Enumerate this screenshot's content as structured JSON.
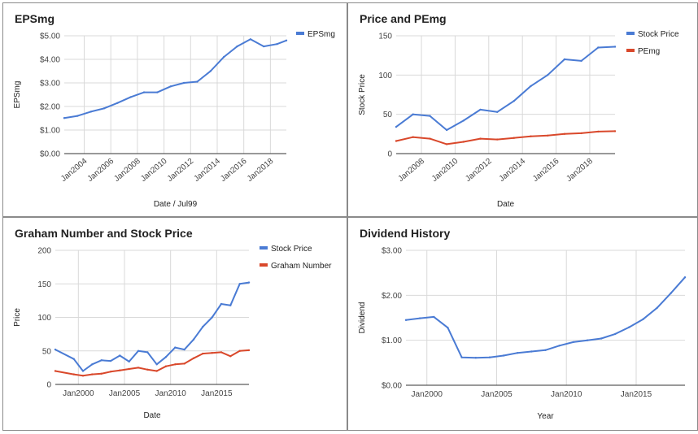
{
  "colors": {
    "blue": "#4a7bd4",
    "red": "#d9482b",
    "grid": "#d9d9d9",
    "baseline": "#333333"
  },
  "chart_data": [
    {
      "type": "line",
      "title": "EPSmg",
      "xlabel": "Date / Jul99",
      "ylabel": "EPSmg",
      "xlim": [
        2002.5,
        2019.2
      ],
      "ylim": [
        0,
        5
      ],
      "y_ticks": [
        "$0.00",
        "$1.00",
        "$2.00",
        "$3.00",
        "$4.00",
        "$5.00"
      ],
      "x_ticks": [
        {
          "label": "Jan2004",
          "x": 2004
        },
        {
          "label": "Jan2006",
          "x": 2006
        },
        {
          "label": "Jan2008",
          "x": 2008
        },
        {
          "label": "Jan2010",
          "x": 2010
        },
        {
          "label": "Jan2012",
          "x": 2012
        },
        {
          "label": "Jan2014",
          "x": 2014
        },
        {
          "label": "Jan2016",
          "x": 2016
        },
        {
          "label": "Jan2018",
          "x": 2018
        }
      ],
      "x_tick_rotate": true,
      "legend": "right",
      "series": [
        {
          "name": "EPSmg",
          "color": "#4a7bd4",
          "x": [
            2002.5,
            2003.5,
            2004.5,
            2005.5,
            2006.5,
            2007.5,
            2008.5,
            2009.5,
            2010.5,
            2011.5,
            2012.5,
            2013.5,
            2014.5,
            2015.5,
            2016.5,
            2017.5,
            2018.5,
            2019.2
          ],
          "y": [
            1.51,
            1.6,
            1.78,
            1.92,
            2.15,
            2.4,
            2.6,
            2.6,
            2.85,
            3.0,
            3.05,
            3.5,
            4.1,
            4.55,
            4.85,
            4.55,
            4.65,
            4.8
          ]
        }
      ]
    },
    {
      "type": "line",
      "title": "Price and PEmg",
      "xlabel": "Date",
      "ylabel": "Stock Price",
      "xlim": [
        2006.5,
        2019.5
      ],
      "ylim": [
        0,
        150
      ],
      "y_ticks": [
        "0",
        "50",
        "100",
        "150"
      ],
      "x_ticks": [
        {
          "label": "Jan2008",
          "x": 2008
        },
        {
          "label": "Jan2010",
          "x": 2010
        },
        {
          "label": "Jan2012",
          "x": 2012
        },
        {
          "label": "Jan2014",
          "x": 2014
        },
        {
          "label": "Jan2016",
          "x": 2016
        },
        {
          "label": "Jan2018",
          "x": 2018
        }
      ],
      "x_tick_rotate": true,
      "legend": "right",
      "series": [
        {
          "name": "Stock Price",
          "color": "#4a7bd4",
          "x": [
            2006.5,
            2007.5,
            2008.5,
            2009.5,
            2010.5,
            2011.5,
            2012.5,
            2013.5,
            2014.5,
            2015.5,
            2016.5,
            2017.5,
            2018.5,
            2019.5
          ],
          "y": [
            34,
            50,
            48,
            30,
            42,
            56,
            53,
            67,
            86,
            100,
            120,
            118,
            135,
            136
          ]
        },
        {
          "name": "PEmg",
          "color": "#d9482b",
          "x": [
            2006.5,
            2007.5,
            2008.5,
            2009.5,
            2010.5,
            2011.5,
            2012.5,
            2013.5,
            2014.5,
            2015.5,
            2016.5,
            2017.5,
            2018.5,
            2019.5
          ],
          "y": [
            16,
            21,
            19,
            12,
            15,
            19,
            18,
            20,
            22,
            23,
            25,
            26,
            28,
            28.5
          ]
        }
      ]
    },
    {
      "type": "line",
      "title": "Graham Number and Stock Price",
      "xlabel": "Date",
      "ylabel": "Price",
      "xlim": [
        1997.5,
        2018.5
      ],
      "ylim": [
        0,
        200
      ],
      "y_ticks": [
        "0",
        "50",
        "100",
        "150",
        "200"
      ],
      "x_ticks": [
        {
          "label": "Jan2000",
          "x": 2000
        },
        {
          "label": "Jan2005",
          "x": 2005
        },
        {
          "label": "Jan2010",
          "x": 2010
        },
        {
          "label": "Jan2015",
          "x": 2015
        }
      ],
      "x_tick_rotate": false,
      "legend": "right",
      "series": [
        {
          "name": "Stock Price",
          "color": "#4a7bd4",
          "x": [
            1997.5,
            1999.5,
            2000.5,
            2001.5,
            2002.5,
            2003.5,
            2004.5,
            2005.5,
            2006.5,
            2007.5,
            2008.5,
            2009.5,
            2010.5,
            2011.5,
            2012.5,
            2013.5,
            2014.5,
            2015.5,
            2016.5,
            2017.5,
            2018.5
          ],
          "y": [
            52,
            38,
            20,
            30,
            36,
            35,
            43,
            34,
            50,
            48,
            30,
            41,
            55,
            52,
            67,
            86,
            100,
            120,
            118,
            150,
            152
          ]
        },
        {
          "name": "Graham Number",
          "color": "#d9482b",
          "x": [
            1997.5,
            1999.5,
            2000.5,
            2001.5,
            2002.5,
            2003.5,
            2004.5,
            2005.5,
            2006.5,
            2007.5,
            2008.5,
            2009.5,
            2010.5,
            2011.5,
            2012.5,
            2013.5,
            2014.5,
            2015.5,
            2016.5,
            2017.5,
            2018.5
          ],
          "y": [
            20,
            15,
            13,
            15,
            16,
            19,
            21,
            23,
            25,
            22,
            20,
            27,
            30,
            31,
            39,
            46,
            47,
            48,
            42,
            50,
            51
          ]
        }
      ]
    },
    {
      "type": "line",
      "title": "Dividend History",
      "xlabel": "Year",
      "ylabel": "Dividend",
      "xlim": [
        1998.5,
        2018.5
      ],
      "ylim": [
        0,
        3
      ],
      "y_ticks": [
        "$0.00",
        "$1.00",
        "$2.00",
        "$3.00"
      ],
      "x_ticks": [
        {
          "label": "Jan2000",
          "x": 2000
        },
        {
          "label": "Jan2005",
          "x": 2005
        },
        {
          "label": "Jan2010",
          "x": 2010
        },
        {
          "label": "Jan2015",
          "x": 2015
        }
      ],
      "x_tick_rotate": false,
      "legend": "none",
      "series": [
        {
          "color": "#4a7bd4",
          "x": [
            1998.5,
            1999.5,
            2000.5,
            2001.5,
            2002.5,
            2003.5,
            2004.5,
            2005.5,
            2006.5,
            2007.5,
            2008.5,
            2009.5,
            2010.5,
            2011.5,
            2012.5,
            2013.5,
            2014.5,
            2015.5,
            2016.5,
            2017.5,
            2018.5
          ],
          "y": [
            1.45,
            1.49,
            1.52,
            1.28,
            0.62,
            0.61,
            0.62,
            0.66,
            0.72,
            0.75,
            0.78,
            0.88,
            0.96,
            1.0,
            1.04,
            1.14,
            1.29,
            1.47,
            1.72,
            2.05,
            2.4
          ]
        }
      ]
    }
  ]
}
